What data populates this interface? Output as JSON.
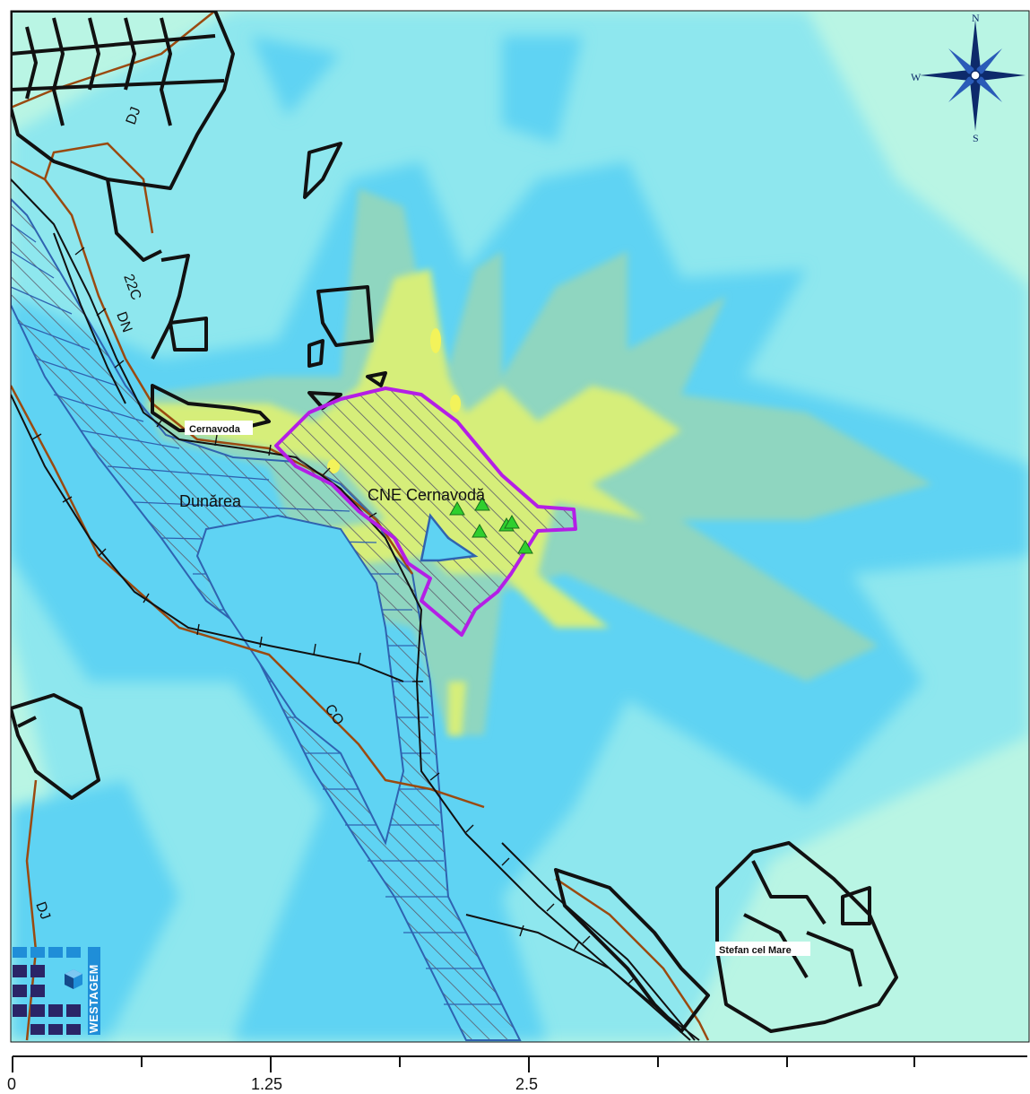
{
  "map": {
    "labels": {
      "plant": "CNE Cernavodă",
      "river": "Dunărea",
      "town1": "Cernavoda",
      "town2": "Stefan cel Mare",
      "road_dj_top": "DJ",
      "road_dn": "DN",
      "road_dn_num": "22C",
      "canal": "CO",
      "road_dj_bottom": "DJ"
    },
    "compass": {
      "north": "N",
      "south": "S",
      "west": "W",
      "icon": "compass-rose-icon"
    },
    "scale_bar": {
      "ticks": [
        "0",
        "1.25",
        "2.5"
      ]
    },
    "logo": {
      "text": "WESTAGEM",
      "icon": "westagem-logo-icon"
    },
    "colors": {
      "background": "#b9f5e4",
      "zone_light": "#8ee7ee",
      "zone_mid": "#5fd3f3",
      "zone_green": "#8fd6c0",
      "zone_yellow": "#d6ee7a",
      "zone_peak": "#f3f35a",
      "plant_outline": "#b41ee6",
      "river": "#2f63b0",
      "road": "#9a4a10",
      "railway": "#111111",
      "receptor": "#2ecf2e"
    }
  }
}
